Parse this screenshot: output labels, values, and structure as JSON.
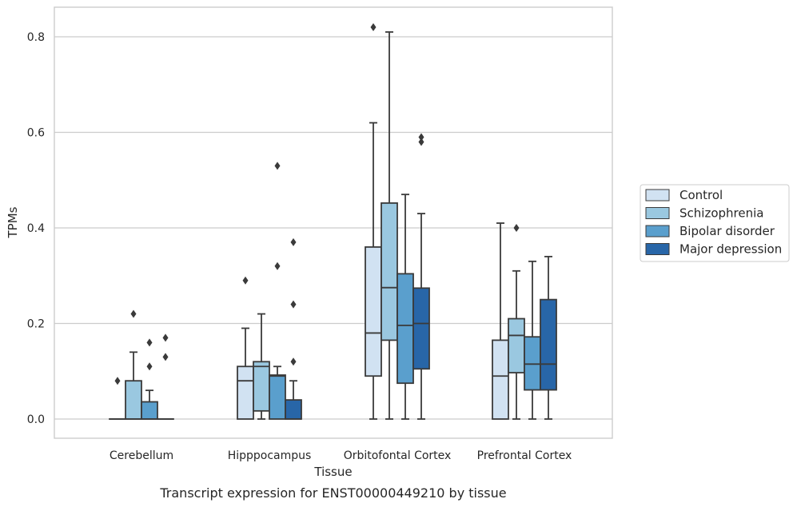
{
  "chart_data": {
    "type": "box",
    "title": "",
    "caption": "Transcript expression for ENST00000449210 by tissue",
    "xlabel": "Tissue",
    "ylabel": "TPMs",
    "ylim": [
      -0.04,
      0.86
    ],
    "yticks": [
      0.0,
      0.2,
      0.4,
      0.6,
      0.8
    ],
    "ytick_labels": [
      "0.0",
      "0.2",
      "0.4",
      "0.6",
      "0.8"
    ],
    "grid": "horizontal",
    "legend_position": "right",
    "categories": [
      "Cerebellum",
      "Hipppocampus",
      "Orbitofontal Cortex",
      "Prefrontal Cortex"
    ],
    "series": [
      {
        "name": "Control",
        "color": "#d1e2f2",
        "boxes": [
          {
            "q1": 0.0,
            "median": 0.0,
            "q3": 0.0,
            "whislo": 0.0,
            "whishi": 0.0,
            "fliers": [
              0.08
            ]
          },
          {
            "q1": 0.0,
            "median": 0.08,
            "q3": 0.11,
            "whislo": 0.0,
            "whishi": 0.19,
            "fliers": [
              0.29
            ]
          },
          {
            "q1": 0.09,
            "median": 0.18,
            "q3": 0.36,
            "whislo": 0.0,
            "whishi": 0.62,
            "fliers": [
              0.82
            ]
          },
          {
            "q1": 0.0,
            "median": 0.09,
            "q3": 0.165,
            "whislo": 0.0,
            "whishi": 0.41,
            "fliers": []
          }
        ]
      },
      {
        "name": "Schizophrenia",
        "color": "#9ac8e0",
        "boxes": [
          {
            "q1": 0.0,
            "median": 0.0,
            "q3": 0.08,
            "whislo": 0.0,
            "whishi": 0.14,
            "fliers": [
              0.22
            ]
          },
          {
            "q1": 0.017,
            "median": 0.11,
            "q3": 0.12,
            "whislo": 0.0,
            "whishi": 0.22,
            "fliers": []
          },
          {
            "q1": 0.165,
            "median": 0.275,
            "q3": 0.452,
            "whislo": 0.0,
            "whishi": 0.81,
            "fliers": []
          },
          {
            "q1": 0.097,
            "median": 0.175,
            "q3": 0.21,
            "whislo": 0.0,
            "whishi": 0.31,
            "fliers": [
              0.4
            ]
          }
        ]
      },
      {
        "name": "Bipolar disorder",
        "color": "#5a9fcd",
        "boxes": [
          {
            "q1": 0.0,
            "median": 0.0,
            "q3": 0.036,
            "whislo": 0.0,
            "whishi": 0.06,
            "fliers": [
              0.11,
              0.16
            ]
          },
          {
            "q1": 0.0,
            "median": 0.09,
            "q3": 0.092,
            "whislo": 0.0,
            "whishi": 0.11,
            "fliers": [
              0.32,
              0.53
            ]
          },
          {
            "q1": 0.075,
            "median": 0.196,
            "q3": 0.304,
            "whislo": 0.0,
            "whishi": 0.47,
            "fliers": []
          },
          {
            "q1": 0.061,
            "median": 0.115,
            "q3": 0.172,
            "whislo": 0.0,
            "whishi": 0.33,
            "fliers": []
          }
        ]
      },
      {
        "name": "Major depression",
        "color": "#2866a8",
        "boxes": [
          {
            "q1": 0.0,
            "median": 0.0,
            "q3": 0.0,
            "whislo": 0.0,
            "whishi": 0.0,
            "fliers": [
              0.13,
              0.17
            ]
          },
          {
            "q1": 0.0,
            "median": 0.0,
            "q3": 0.04,
            "whislo": 0.0,
            "whishi": 0.08,
            "fliers": [
              0.12,
              0.24,
              0.37
            ]
          },
          {
            "q1": 0.105,
            "median": 0.2,
            "q3": 0.274,
            "whislo": 0.0,
            "whishi": 0.43,
            "fliers": [
              0.58,
              0.59
            ]
          },
          {
            "q1": 0.061,
            "median": 0.115,
            "q3": 0.25,
            "whislo": 0.0,
            "whishi": 0.34,
            "fliers": []
          }
        ]
      }
    ]
  }
}
